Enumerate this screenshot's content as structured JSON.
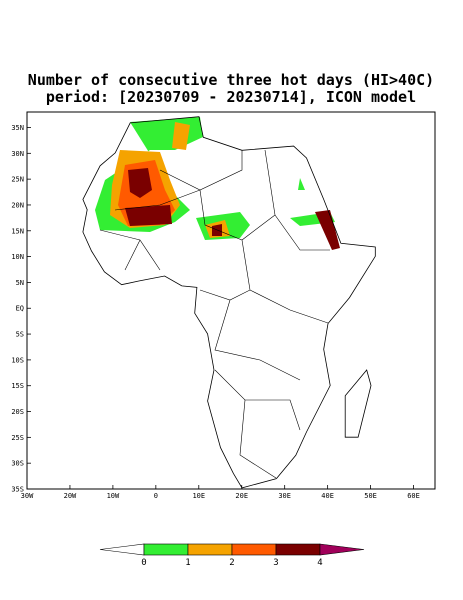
{
  "map": {
    "title": "Number of consecutive three hot days (HI>40C)",
    "subtitle": "period: [20230709 - 20230714], ICON model",
    "xlim": [
      -30,
      65
    ],
    "ylim": [
      -35,
      38
    ],
    "xticks": [
      {
        "value": -30,
        "label": "30W"
      },
      {
        "value": -20,
        "label": "20W"
      },
      {
        "value": -10,
        "label": "10W"
      },
      0,
      {
        "value": 10,
        "label": "10E"
      },
      {
        "value": 20,
        "label": "20E"
      },
      {
        "value": 30,
        "label": "30E"
      },
      {
        "value": 40,
        "label": "40E"
      },
      {
        "value": 50,
        "label": "50E"
      },
      {
        "value": 60,
        "label": "60E"
      }
    ],
    "yticks": [
      {
        "value": 35,
        "label": "35N"
      },
      {
        "value": 30,
        "label": "30N"
      },
      {
        "value": 25,
        "label": "25N"
      },
      {
        "value": 20,
        "label": "20N"
      },
      {
        "value": 15,
        "label": "15N"
      },
      {
        "value": 10,
        "label": "10N"
      },
      {
        "value": 5,
        "label": "5N"
      },
      {
        "value": 0,
        "label": "EQ"
      },
      {
        "value": -5,
        "label": "5S"
      },
      {
        "value": -10,
        "label": "10S"
      },
      {
        "value": -15,
        "label": "15S"
      },
      {
        "value": -20,
        "label": "20S"
      },
      {
        "value": -25,
        "label": "25S"
      },
      {
        "value": -30,
        "label": "30S"
      },
      {
        "value": -35,
        "label": "35S"
      }
    ],
    "colorbar": {
      "levels": [
        0,
        1,
        2,
        3,
        4
      ],
      "colors": [
        "#ffffff",
        "#33ee33",
        "#f5a300",
        "#ff5a00",
        "#7a0000",
        "#a0005a"
      ]
    }
  }
}
